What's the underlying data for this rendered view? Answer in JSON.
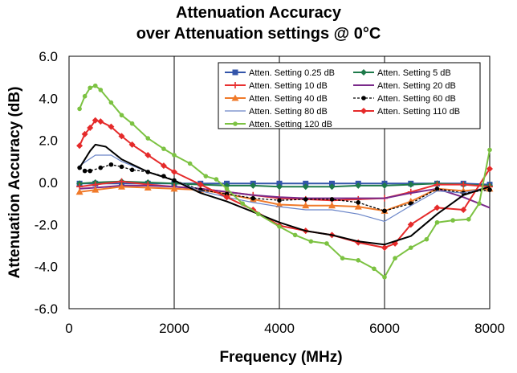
{
  "chart_data": {
    "type": "line",
    "title": [
      "Attenuation Accuracy",
      "over Attenuation settings @ 0°C"
    ],
    "xlabel": "Frequency (MHz)",
    "ylabel": "Attenuation Accuracy (dB)",
    "xlim": [
      0,
      8000
    ],
    "ylim": [
      -6,
      6
    ],
    "xticks": [
      0,
      2000,
      4000,
      6000,
      8000
    ],
    "xtick_labels": [
      "0",
      "2000",
      "4000",
      "6000",
      "8000"
    ],
    "yticks": [
      6,
      4,
      2,
      0,
      -2,
      -4,
      -6
    ],
    "ytick_labels": [
      "6.0",
      "4.0",
      "2.0",
      "0.0",
      "-2.0",
      "-4.0",
      "-6.0"
    ],
    "grid": "vertical",
    "legend_position": "top-right",
    "series": [
      {
        "name": "Atten. Setting 0.25 dB",
        "color": "#3355aa",
        "marker": "square",
        "x": [
          200,
          500,
          1000,
          1500,
          2000,
          2500,
          3000,
          3500,
          4000,
          4500,
          5000,
          5500,
          6000,
          6500,
          7000,
          7500,
          8000
        ],
        "y": [
          -0.05,
          -0.05,
          -0.05,
          -0.05,
          -0.05,
          -0.05,
          -0.05,
          -0.05,
          -0.05,
          -0.05,
          -0.05,
          -0.05,
          -0.05,
          -0.05,
          -0.05,
          -0.05,
          -0.1
        ]
      },
      {
        "name": "Atten. Setting 5 dB",
        "color": "#1e7a4a",
        "marker": "diamond",
        "x": [
          200,
          500,
          1000,
          1500,
          2000,
          2500,
          3000,
          3500,
          4000,
          4500,
          5000,
          5500,
          6000,
          6500,
          7000,
          7500,
          8000
        ],
        "y": [
          -0.05,
          0,
          0.05,
          0,
          -0.05,
          -0.1,
          -0.15,
          -0.15,
          -0.2,
          -0.2,
          -0.2,
          -0.15,
          -0.15,
          -0.1,
          -0.05,
          -0.1,
          -0.15
        ]
      },
      {
        "name": "Atten. Setting 10 dB",
        "color": "#e83030",
        "marker": "plus",
        "x": [
          200,
          500,
          1000,
          1500,
          2000,
          2500,
          3000,
          3500,
          4000,
          4500,
          5000,
          5500,
          6000,
          6500,
          7000,
          7500,
          8000
        ],
        "y": [
          -0.2,
          -0.1,
          0.05,
          -0.1,
          -0.2,
          -0.3,
          -0.45,
          -0.6,
          -0.75,
          -0.8,
          -0.85,
          -0.8,
          -0.75,
          -0.45,
          -0.1,
          -0.1,
          -0.2
        ]
      },
      {
        "name": "Atten. Setting 20 dB",
        "color": "#7a2a8a",
        "marker": "none",
        "x": [
          200,
          500,
          1000,
          1500,
          2000,
          2500,
          3000,
          3500,
          4000,
          4500,
          5000,
          5500,
          6000,
          6500,
          7000,
          7500,
          8000
        ],
        "y": [
          -0.3,
          -0.25,
          -0.15,
          -0.15,
          -0.2,
          -0.3,
          -0.45,
          -0.6,
          -0.7,
          -0.75,
          -0.75,
          -0.75,
          -0.75,
          -0.5,
          -0.3,
          -0.7,
          -1.2
        ]
      },
      {
        "name": "Atten. Setting 40 dB",
        "color": "#f07a2a",
        "marker": "triangle",
        "x": [
          200,
          500,
          1000,
          1500,
          2000,
          2500,
          3000,
          3500,
          4000,
          4500,
          5000,
          5500,
          6000,
          6500,
          7000,
          7500,
          8000
        ],
        "y": [
          -0.45,
          -0.35,
          -0.2,
          -0.25,
          -0.3,
          -0.35,
          -0.55,
          -0.8,
          -1.05,
          -1.1,
          -1.1,
          -1.15,
          -1.35,
          -0.9,
          -0.3,
          -0.4,
          -0.3
        ]
      },
      {
        "name": "Atten. Setting 60 dB",
        "color": "#000000",
        "marker": "dot",
        "dashed": true,
        "x": [
          200,
          300,
          400,
          600,
          800,
          1000,
          1200,
          1500,
          1800,
          2000,
          2500,
          3000,
          3500,
          4000,
          4500,
          5000,
          5500,
          6000,
          6500,
          7000,
          7500,
          8000
        ],
        "y": [
          0.7,
          0.55,
          0.55,
          0.7,
          0.85,
          0.75,
          0.6,
          0.5,
          0.3,
          0.1,
          -0.35,
          -0.55,
          -0.75,
          -0.85,
          -0.8,
          -0.8,
          -0.95,
          -1.35,
          -1.0,
          -0.3,
          -0.5,
          -0.35
        ]
      },
      {
        "name": "Atten. Setting 80 dB",
        "color": "#6a85c8",
        "marker": "none",
        "x": [
          200,
          500,
          800,
          1000,
          1500,
          2000,
          2500,
          3000,
          3500,
          4000,
          4500,
          5000,
          5500,
          6000,
          6500,
          7000,
          7500,
          8000
        ],
        "y": [
          0.8,
          1.3,
          1.3,
          1.0,
          0.5,
          0.1,
          -0.4,
          -0.7,
          -0.95,
          -1.15,
          -1.3,
          -1.3,
          -1.5,
          -1.85,
          -1.1,
          -0.4,
          -0.5,
          -0.2
        ]
      },
      {
        "name": "Atten. Setting 110 dB",
        "color": "#e52a2a",
        "marker": "diamond",
        "x": [
          200,
          300,
          400,
          500,
          600,
          800,
          1000,
          1200,
          1500,
          1800,
          2000,
          2500,
          3000,
          3500,
          4000,
          4500,
          5000,
          5500,
          6000,
          6200,
          6500,
          7000,
          7500,
          8000
        ],
        "y": [
          1.75,
          2.3,
          2.6,
          2.95,
          2.9,
          2.65,
          2.2,
          1.8,
          1.3,
          0.8,
          0.5,
          -0.1,
          -0.7,
          -1.3,
          -2.05,
          -2.3,
          -2.5,
          -2.85,
          -3.1,
          -2.9,
          -2.0,
          -1.2,
          -1.3,
          0.65
        ]
      },
      {
        "name": "",
        "color": "#000000",
        "marker": "none",
        "x": [
          200,
          400,
          500,
          700,
          1000,
          1500,
          2000,
          2500,
          3000,
          3500,
          4000,
          4500,
          5000,
          5500,
          6000,
          6500,
          7000,
          7500,
          8000
        ],
        "y": [
          0.7,
          1.5,
          1.8,
          1.7,
          1.1,
          0.5,
          0.1,
          -0.5,
          -0.9,
          -1.4,
          -1.9,
          -2.3,
          -2.5,
          -2.8,
          -2.95,
          -2.55,
          -1.5,
          -0.6,
          -0.2
        ]
      },
      {
        "name": "Atten. Setting 120 dB",
        "color": "#7cc242",
        "marker": "dot",
        "x": [
          200,
          300,
          400,
          500,
          600,
          800,
          1000,
          1200,
          1500,
          1800,
          2000,
          2300,
          2600,
          2800,
          3000,
          3300,
          3600,
          4000,
          4300,
          4600,
          4900,
          5200,
          5500,
          5800,
          6000,
          6200,
          6500,
          6800,
          7000,
          7300,
          7600,
          7800,
          8000
        ],
        "y": [
          3.5,
          4.1,
          4.5,
          4.6,
          4.4,
          3.8,
          3.2,
          2.8,
          2.1,
          1.6,
          1.3,
          0.9,
          0.3,
          0.15,
          -0.3,
          -1.0,
          -1.5,
          -2.1,
          -2.5,
          -2.8,
          -2.9,
          -3.6,
          -3.7,
          -4.1,
          -4.5,
          -3.6,
          -3.1,
          -2.7,
          -1.9,
          -1.8,
          -1.75,
          -1.0,
          1.55
        ]
      }
    ]
  }
}
